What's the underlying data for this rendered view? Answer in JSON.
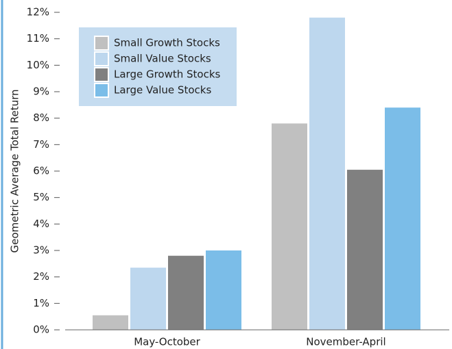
{
  "chart_data": {
    "type": "bar",
    "y_label": "Geometric Average Total Return",
    "categories": [
      "May-October",
      "November-April"
    ],
    "series": [
      {
        "name": "Small Growth Stocks",
        "color": "#c0c0c0",
        "values": [
          0.55,
          7.8
        ]
      },
      {
        "name": "Small Value Stocks",
        "color": "#bdd7ee",
        "values": [
          2.35,
          11.8
        ]
      },
      {
        "name": "Large Growth Stocks",
        "color": "#808080",
        "values": [
          2.8,
          6.05
        ]
      },
      {
        "name": "Large Value Stocks",
        "color": "#7bbde8",
        "values": [
          3.0,
          8.4
        ]
      }
    ],
    "ylim": [
      0,
      12
    ],
    "yticks": [
      {
        "value": 0,
        "label": "0%"
      },
      {
        "value": 1,
        "label": "1%"
      },
      {
        "value": 2,
        "label": "2%"
      },
      {
        "value": 3,
        "label": "3%"
      },
      {
        "value": 4,
        "label": "4%"
      },
      {
        "value": 5,
        "label": "5%"
      },
      {
        "value": 6,
        "label": "6%"
      },
      {
        "value": 7,
        "label": "7%"
      },
      {
        "value": 8,
        "label": "8%"
      },
      {
        "value": 9,
        "label": "9%"
      },
      {
        "value": 10,
        "label": "10%"
      },
      {
        "value": 11,
        "label": "11%"
      },
      {
        "value": 12,
        "label": "12%"
      }
    ],
    "legend": "upper left"
  }
}
